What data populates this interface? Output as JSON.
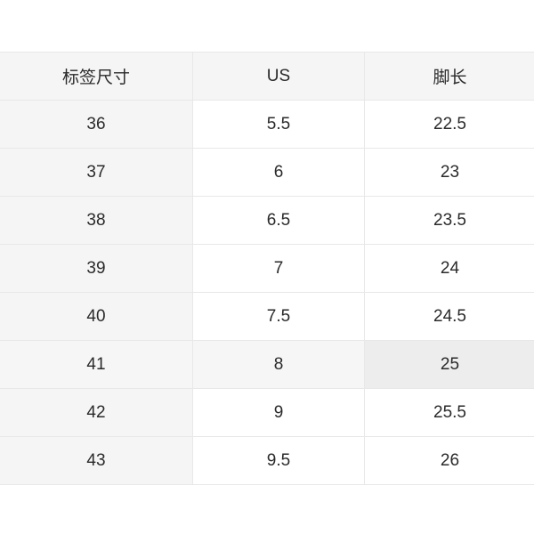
{
  "size_table": {
    "headers": [
      "标签尺寸",
      "US",
      "脚长"
    ],
    "rows": [
      [
        "36",
        "5.5",
        "22.5"
      ],
      [
        "37",
        "6",
        "23"
      ],
      [
        "38",
        "6.5",
        "23.5"
      ],
      [
        "39",
        "7",
        "24"
      ],
      [
        "40",
        "7.5",
        "24.5"
      ],
      [
        "41",
        "8",
        "25"
      ],
      [
        "42",
        "9",
        "25.5"
      ],
      [
        "43",
        "9.5",
        "26"
      ]
    ]
  }
}
